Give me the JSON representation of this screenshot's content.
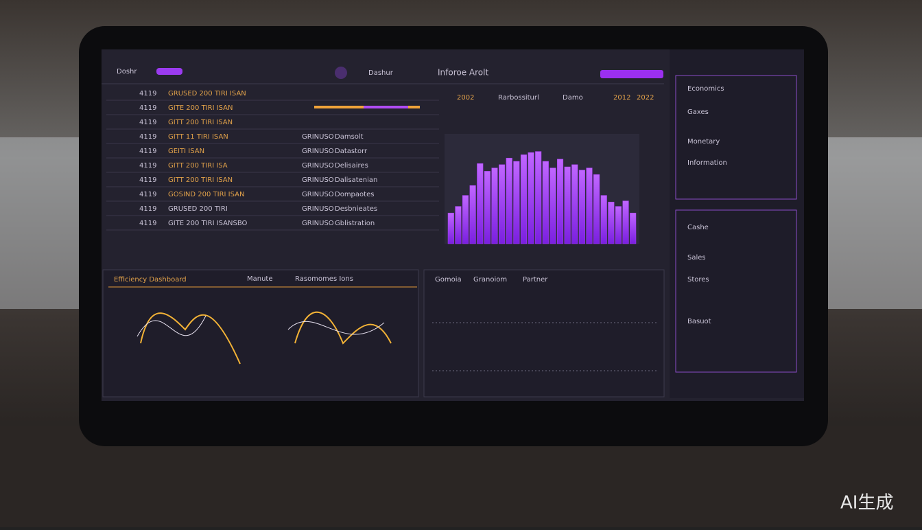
{
  "header": {
    "left_title": "Doshr",
    "center_title": "Dashur",
    "right_title": "Inforoe Arolt"
  },
  "stats": [
    "2002",
    "Rarbossiturl",
    "Damo",
    "2012",
    "2022"
  ],
  "table": {
    "rows": [
      [
        "4119",
        "GRUSED 200 TIRI ISAN"
      ],
      [
        "4119",
        "GITE 200 TIRI ISAN"
      ],
      [
        "4119",
        "GITT 200 TIRI ISAN"
      ],
      [
        "4119",
        "GITT 11 TIRI ISAN",
        "GRINUSO",
        "Damsolt"
      ],
      [
        "4119",
        "GEITI ISAN",
        "GRINUSO",
        "Datastorr"
      ],
      [
        "4119",
        "GITT 200 TIRI ISA",
        "GRINUSO",
        "Delisaires"
      ],
      [
        "4119",
        "GITT 200 TIRI ISAN",
        "GRINUSO",
        "Dalisatenian"
      ],
      [
        "4119",
        "GOSIND 200 TIRI ISAN",
        "GRINUSO",
        "Dompaotes"
      ],
      [
        "4119",
        "GRUSED 200 TIRI",
        "GRINUSO",
        "Desbnieates"
      ],
      [
        "4119",
        "GITE 200 TIRI ISANSBO",
        "GRINUSO",
        "Gblistration"
      ]
    ]
  },
  "lower_left": {
    "title": "Efficiency Dashboard",
    "tab": "Manute",
    "tab2": "Rasomomes Ions"
  },
  "lower_middle": {
    "title": "Partner",
    "tab": "Gomoia",
    "tab2": "Granoiom"
  },
  "side": {
    "items": [
      "Economics",
      "Gaxes",
      "Monetary",
      "Information",
      "Cashe",
      "Sales",
      "Stores",
      "Basuot"
    ]
  },
  "watermark": "AI生成",
  "chart_data": {
    "type": "bar",
    "color": "#a63cf5",
    "values": [
      28,
      34,
      44,
      53,
      73,
      66,
      69,
      72,
      78,
      75,
      81,
      83,
      84,
      75,
      69,
      77,
      70,
      72,
      67,
      69,
      63,
      44,
      38,
      34,
      39,
      28
    ],
    "ylim": [
      0,
      100
    ]
  }
}
